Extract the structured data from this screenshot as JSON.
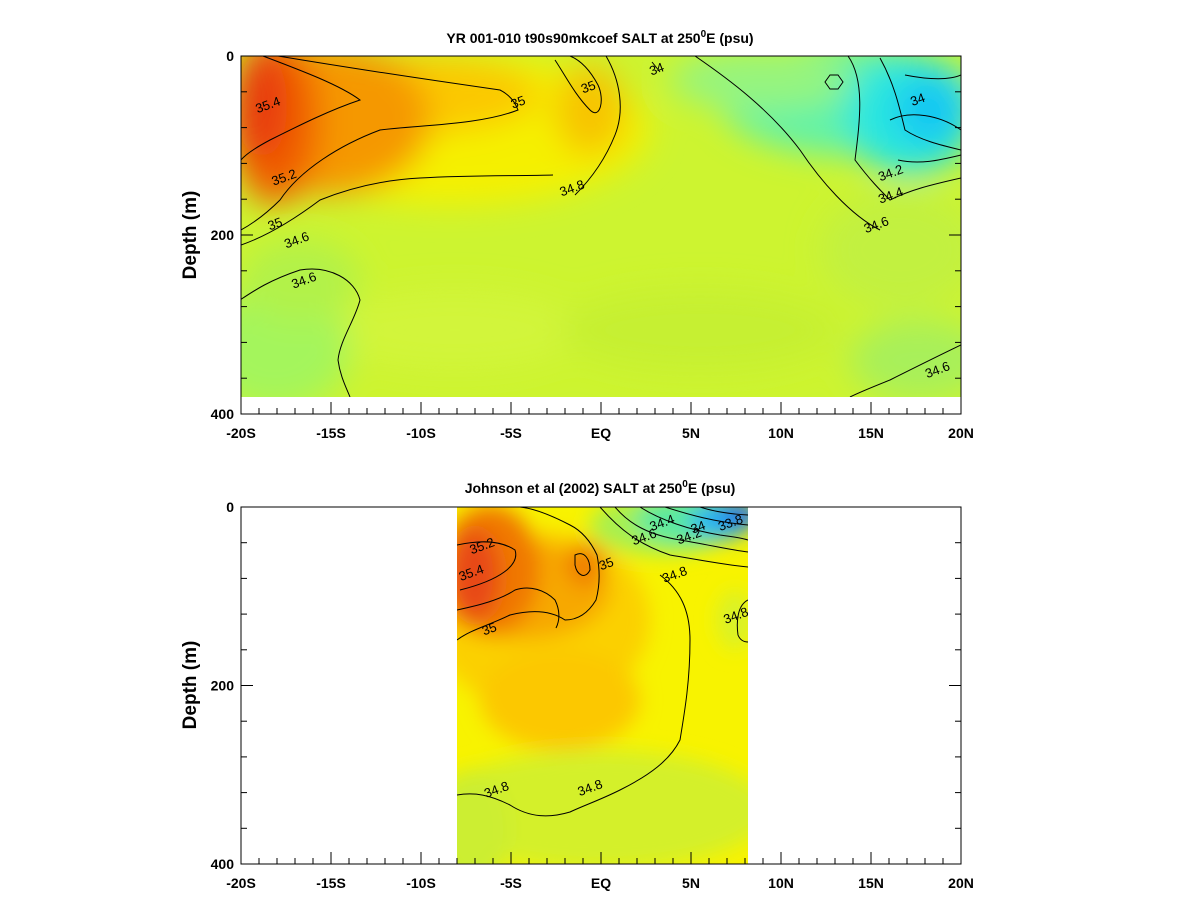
{
  "chart_data": [
    {
      "type": "heatmap",
      "title": "YR 001-010 t90s90mkcoef SALT at 250",
      "title_sup": "0",
      "title_suffix": "E (psu)",
      "ylabel": "Depth (m)",
      "xlim": [
        -20,
        20
      ],
      "ylim": [
        400,
        0
      ],
      "x_ticks": [
        -20,
        -15,
        -10,
        -5,
        0,
        5,
        10,
        15,
        20
      ],
      "x_tick_labels": [
        "-20S",
        "-15S",
        "-10S",
        "-5S",
        "EQ",
        "5N",
        "10N",
        "15N",
        "20N"
      ],
      "y_ticks": [
        0,
        200,
        400
      ],
      "y_tick_labels": [
        "0",
        "200",
        "400"
      ],
      "data_extent": {
        "x": [
          -20,
          20
        ],
        "y": [
          0,
          380
        ]
      },
      "contour_labels": [
        {
          "text": "35.4",
          "x": -18.5,
          "y": 55
        },
        {
          "text": "35",
          "x": -4.6,
          "y": 52
        },
        {
          "text": "35",
          "x": -0.7,
          "y": 35
        },
        {
          "text": "34",
          "x": 3.1,
          "y": 15
        },
        {
          "text": "34",
          "x": 17.6,
          "y": 49
        },
        {
          "text": "35.2",
          "x": -17.6,
          "y": 136
        },
        {
          "text": "34.8",
          "x": -1.6,
          "y": 148
        },
        {
          "text": "34.2",
          "x": 16.1,
          "y": 131
        },
        {
          "text": "34.4",
          "x": 16.1,
          "y": 156
        },
        {
          "text": "34.6",
          "x": 15.3,
          "y": 189
        },
        {
          "text": "35",
          "x": -18.1,
          "y": 188
        },
        {
          "text": "34.6",
          "x": -16.9,
          "y": 206
        },
        {
          "text": "34.6",
          "x": -16.5,
          "y": 251
        },
        {
          "text": "34.6",
          "x": 18.7,
          "y": 351
        }
      ]
    },
    {
      "type": "heatmap",
      "title": "Johnson et al (2002) SALT at 250",
      "title_sup": "0",
      "title_suffix": "E (psu)",
      "ylabel": "Depth (m)",
      "xlim": [
        -20,
        20
      ],
      "ylim": [
        400,
        0
      ],
      "x_ticks": [
        -20,
        -15,
        -10,
        -5,
        0,
        5,
        10,
        15,
        20
      ],
      "x_tick_labels": [
        "-20S",
        "-15S",
        "-10S",
        "-5S",
        "EQ",
        "5N",
        "10N",
        "15N",
        "20N"
      ],
      "y_ticks": [
        0,
        200,
        400
      ],
      "y_tick_labels": [
        "0",
        "200",
        "400"
      ],
      "data_extent": {
        "x": [
          -8,
          8
        ],
        "y": [
          0,
          400
        ]
      },
      "contour_labels": [
        {
          "text": "34.4",
          "x": 3.4,
          "y": 18
        },
        {
          "text": "34",
          "x": 5.4,
          "y": 23
        },
        {
          "text": "33.8",
          "x": 7.2,
          "y": 18
        },
        {
          "text": "34.6",
          "x": 2.4,
          "y": 34
        },
        {
          "text": "34.2",
          "x": 4.9,
          "y": 33
        },
        {
          "text": "35.2",
          "x": -6.6,
          "y": 44
        },
        {
          "text": "35",
          "x": 0.3,
          "y": 64
        },
        {
          "text": "34.8",
          "x": 4.1,
          "y": 76
        },
        {
          "text": "35.4",
          "x": -7.2,
          "y": 74
        },
        {
          "text": "34.8",
          "x": 7.5,
          "y": 122
        },
        {
          "text": "35",
          "x": -6.2,
          "y": 137
        },
        {
          "text": "34.8",
          "x": -5.8,
          "y": 317
        },
        {
          "text": "34.8",
          "x": -0.6,
          "y": 315
        }
      ]
    }
  ]
}
